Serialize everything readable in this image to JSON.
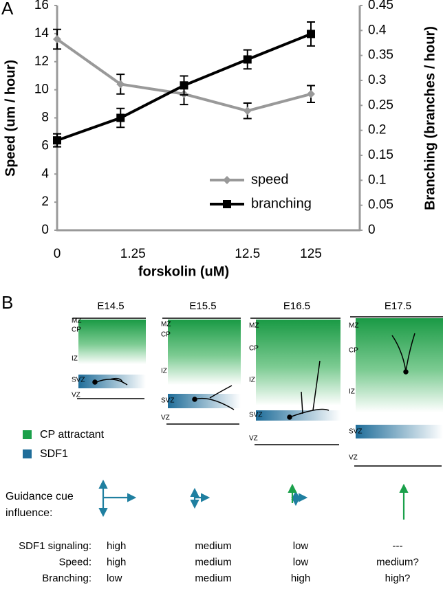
{
  "panel_labels": [
    "A",
    "B"
  ],
  "chart_data": {
    "type": "line",
    "xlabel": "forskolin (uM)",
    "ylabel": "Speed (um / hour)",
    "y2label": "Branching (branches / hour)",
    "categories": [
      "0",
      "1.25",
      null,
      "12.5",
      "125"
    ],
    "ylim": [
      0,
      16
    ],
    "yticks": [
      0,
      2,
      4,
      6,
      8,
      10,
      12,
      14,
      16
    ],
    "y2lim": [
      0,
      0.45
    ],
    "y2ticks": [
      0,
      0.05,
      0.1,
      0.15,
      0.2,
      0.25,
      0.3,
      0.35,
      0.4,
      0.45
    ],
    "legend": "lower right",
    "series": [
      {
        "name": "speed",
        "color": "#999999",
        "marker": "diamond",
        "values": [
          13.6,
          10.4,
          9.7,
          8.5,
          9.7
        ],
        "errors": [
          0.7,
          0.7,
          0.75,
          0.55,
          0.6
        ]
      },
      {
        "name": "branching",
        "color": "#000000",
        "marker": "square",
        "axis": "y2",
        "values": [
          0.18,
          0.225,
          0.29,
          0.342,
          0.393
        ],
        "errors": [
          0.013,
          0.019,
          0.019,
          0.019,
          0.024
        ]
      }
    ]
  },
  "diagram": {
    "columns": [
      {
        "stage": "E14.5",
        "layers": [
          "MZ",
          "CP",
          "IZ",
          "SVZ",
          "VZ"
        ]
      },
      {
        "stage": "E15.5",
        "layers": [
          "MZ",
          "CP",
          "IZ",
          "SVZ",
          "VZ"
        ]
      },
      {
        "stage": "E16.5",
        "layers": [
          "MZ",
          "CP",
          "IZ",
          "SVZ",
          "VZ"
        ]
      },
      {
        "stage": "E17.5",
        "layers": [
          "MZ",
          "CP",
          "IZ",
          "SVZ",
          "VZ"
        ]
      }
    ],
    "legend": [
      "CP attractant",
      "SDF1"
    ],
    "guidance_label": [
      "Guidance cue",
      "influence:"
    ],
    "table": [
      {
        "label": "SDF1 signaling:",
        "values": [
          "high",
          "medium",
          "low",
          "---"
        ]
      },
      {
        "label": "Speed:",
        "values": [
          "high",
          "medium",
          "low",
          "medium?"
        ]
      },
      {
        "label": "Branching:",
        "values": [
          "low",
          "medium",
          "high",
          "high?"
        ]
      }
    ]
  }
}
